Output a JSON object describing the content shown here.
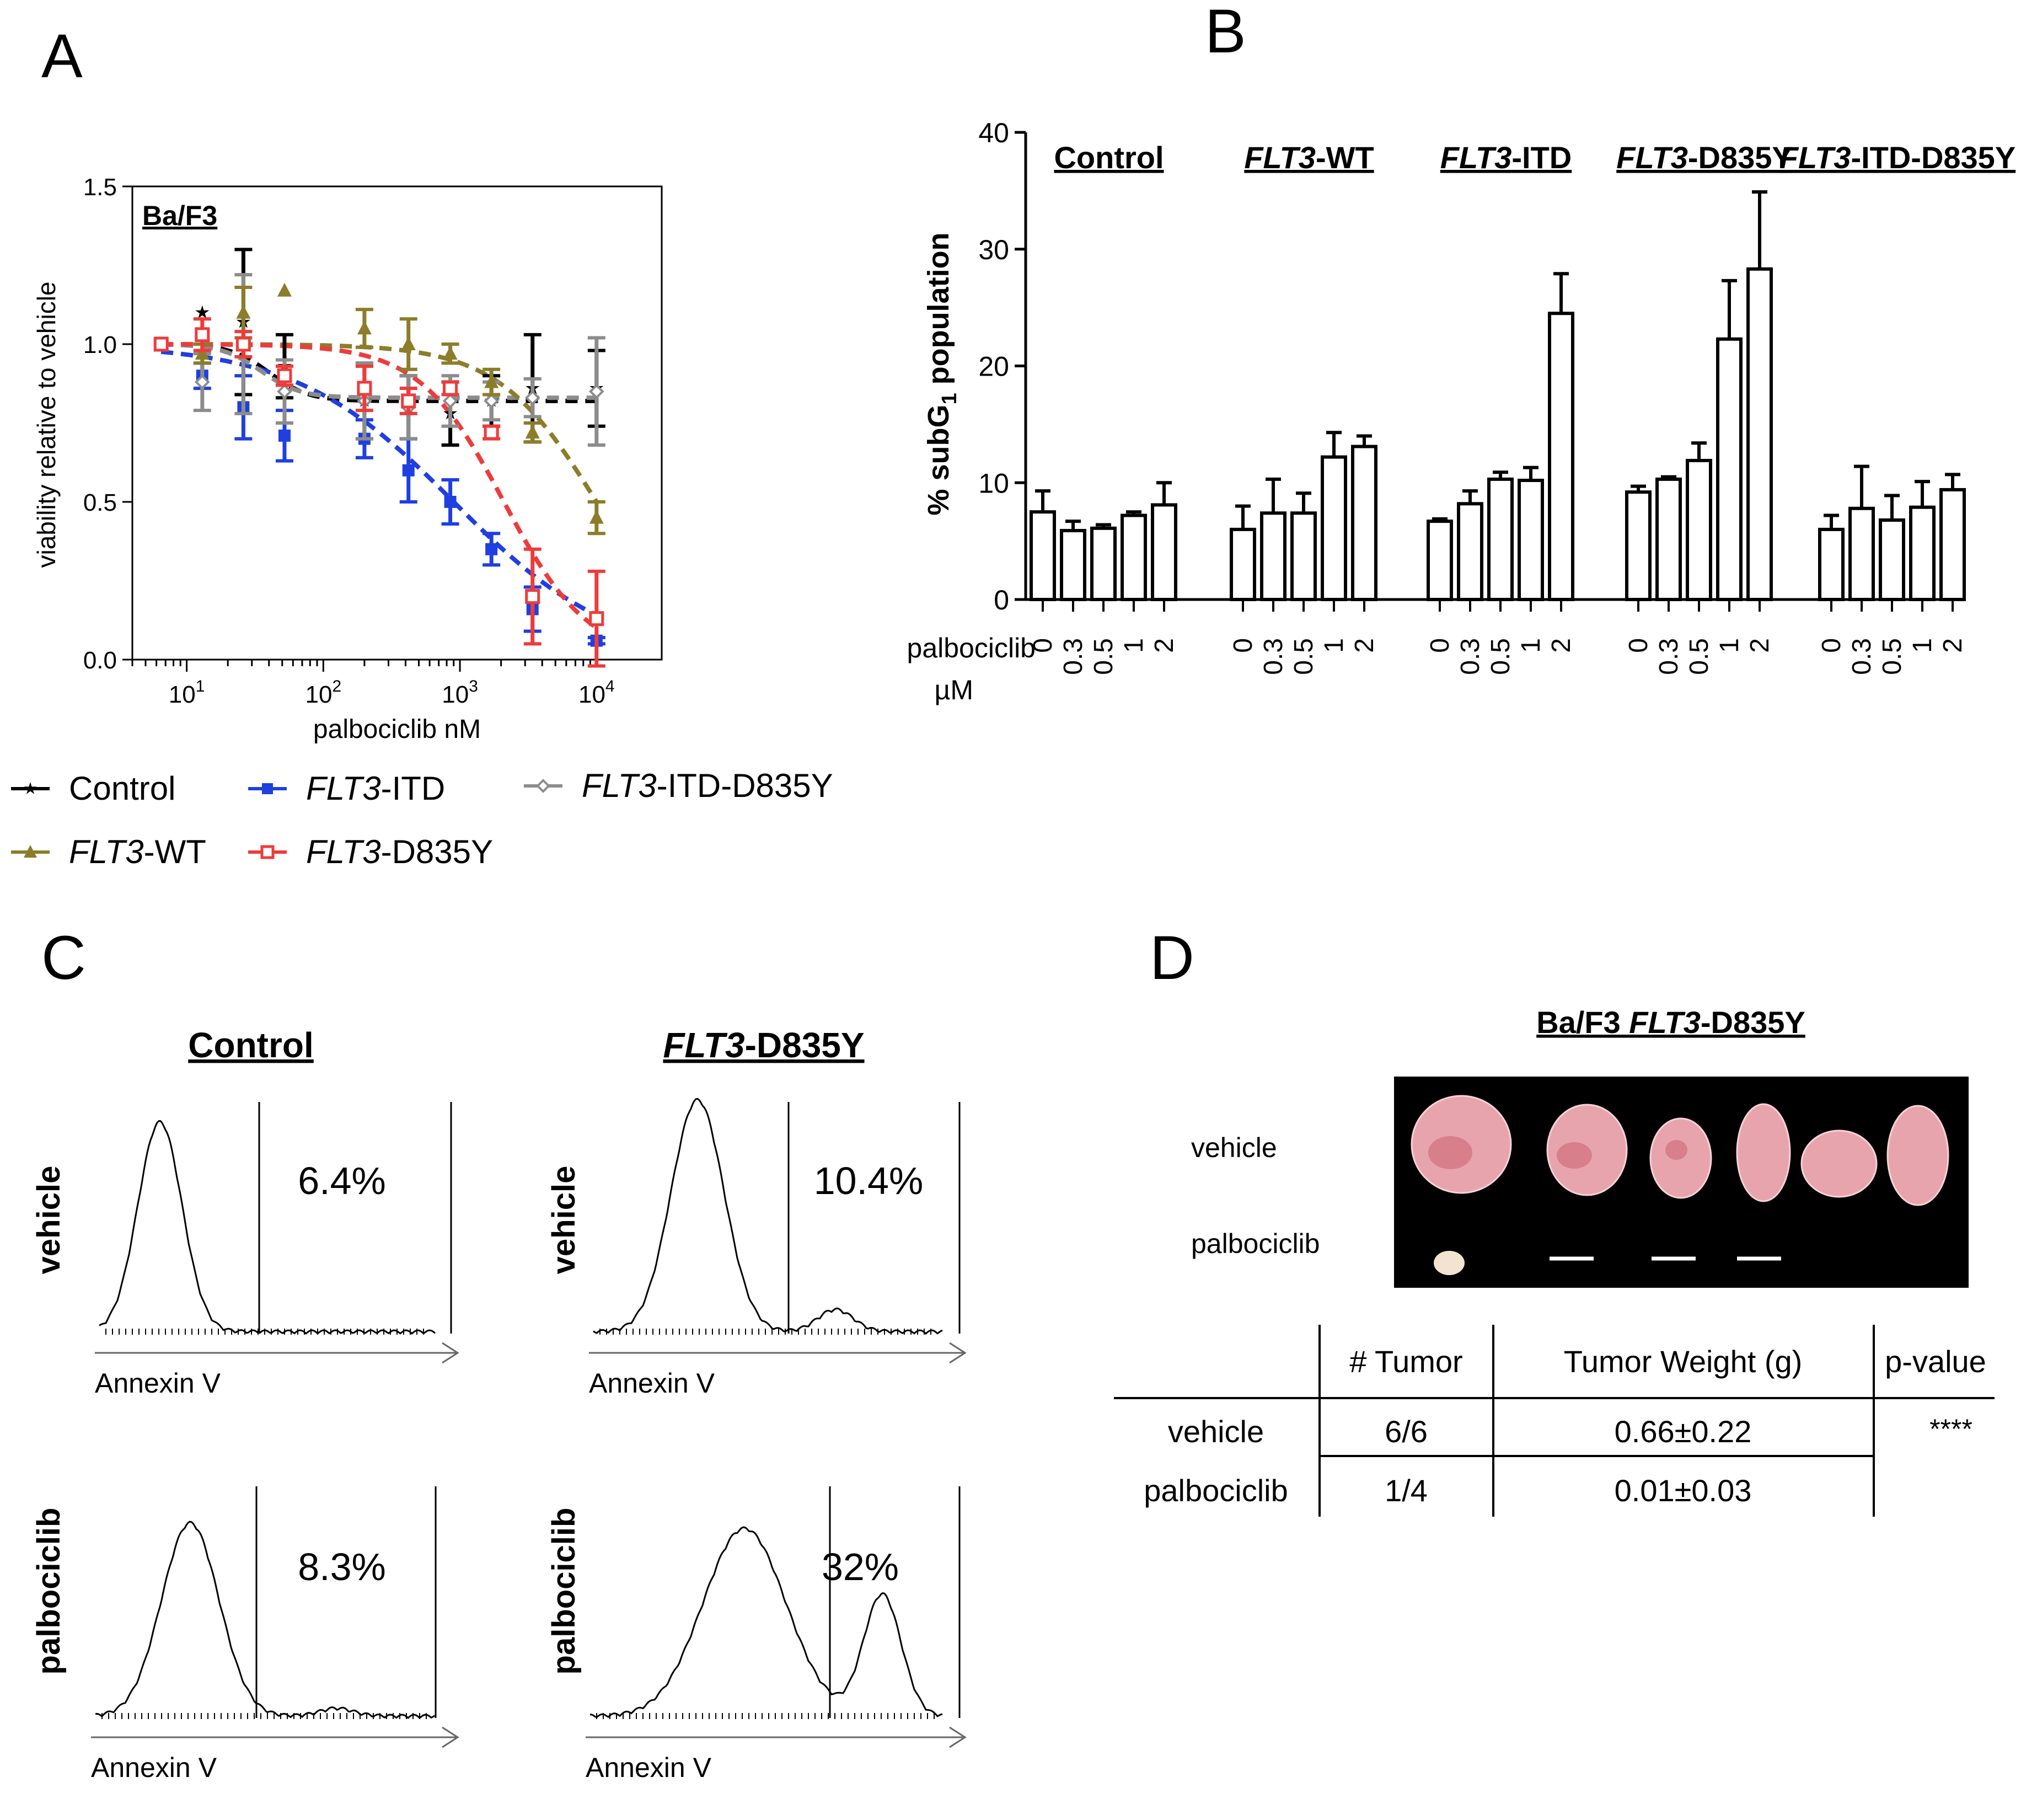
{
  "panels": {
    "A": "A",
    "B": "B",
    "C": "C",
    "D": "D"
  },
  "colors": {
    "control": "#000000",
    "wt": "#8b7d2a",
    "itd": "#1f3fe0",
    "d835y": "#ee3b3b",
    "itd_d835y": "#8c8c8c"
  },
  "chart_data": [
    {
      "id": "A",
      "type": "line",
      "title": "Ba/F3",
      "xlabel": "palbociclib nM",
      "ylabel": "viability relative to vehicle",
      "xscale": "log",
      "xlim": [
        4,
        30000
      ],
      "ylim": [
        0,
        1.5
      ],
      "yticks": [
        "0.0",
        "0.5",
        "1.0",
        "1.5"
      ],
      "xticks": [
        {
          "base": "10",
          "exp": "1",
          "value": 10
        },
        {
          "base": "10",
          "exp": "2",
          "value": 100
        },
        {
          "base": "10",
          "exp": "3",
          "value": 1000
        },
        {
          "base": "10",
          "exp": "4",
          "value": 10000
        }
      ],
      "legend": [
        {
          "key": "control",
          "prefix": "",
          "suffix": "Control",
          "italic": false,
          "marker": "star"
        },
        {
          "key": "itd",
          "prefix": "FLT3",
          "suffix": "-ITD",
          "italic": true,
          "marker": "square"
        },
        {
          "key": "itd_d835y",
          "prefix": "FLT3",
          "suffix": "-ITD-D835Y",
          "italic": true,
          "marker": "diamond"
        },
        {
          "key": "wt",
          "prefix": "FLT3",
          "suffix": "-WT",
          "italic": true,
          "marker": "triangle"
        },
        {
          "key": "d835y",
          "prefix": "FLT3",
          "suffix": "-D835Y",
          "italic": true,
          "marker": "opensquare"
        }
      ],
      "series": [
        {
          "key": "control",
          "name": "Control",
          "marker": "star",
          "fit": "flat",
          "fit_params": {
            "bottom": 0.82,
            "top": 1.0,
            "ic50": 40,
            "hill": 3
          },
          "x": [
            6.5,
            13,
            26,
            52,
            200,
            420,
            850,
            1700,
            3400,
            10000
          ],
          "y": [
            1.0,
            1.1,
            1.07,
            0.93,
            0.82,
            0.8,
            0.78,
            0.82,
            0.86,
            0.86
          ],
          "err": [
            0,
            0,
            0.23,
            0.1,
            0.12,
            0.1,
            0.1,
            0.08,
            0.17,
            0.12
          ]
        },
        {
          "key": "itd",
          "name": "FLT3-ITD",
          "marker": "square",
          "fit": "dose",
          "fit_params": {
            "top": 1.0,
            "bottom": 0,
            "ic50": 900,
            "hill": 0.75
          },
          "x": [
            6.5,
            13,
            26,
            52,
            200,
            420,
            850,
            1700,
            3400,
            10000
          ],
          "y": [
            1.0,
            0.9,
            0.8,
            0.71,
            0.7,
            0.6,
            0.5,
            0.35,
            0.16,
            0.06
          ],
          "err": [
            0,
            0.04,
            0.1,
            0.08,
            0.06,
            0.1,
            0.07,
            0.05,
            0.07,
            0.01
          ]
        },
        {
          "key": "itd_d835y",
          "name": "FLT3-ITD-D835Y",
          "marker": "diamond",
          "fit": "flat",
          "fit_params": {
            "bottom": 0.83,
            "top": 1.0,
            "ic50": 35,
            "hill": 3
          },
          "x": [
            6.5,
            13,
            26,
            52,
            200,
            420,
            850,
            1700,
            3400,
            10000
          ],
          "y": [
            1.0,
            0.88,
            1.0,
            0.85,
            0.82,
            0.8,
            0.82,
            0.82,
            0.83,
            0.85
          ],
          "err": [
            0,
            0.09,
            0.22,
            0.1,
            0.12,
            0.1,
            0.08,
            0.06,
            0.06,
            0.17
          ]
        },
        {
          "key": "wt",
          "name": "FLT3-WT",
          "marker": "triangle",
          "fit": "dose",
          "fit_params": {
            "top": 1.0,
            "bottom": 0,
            "ic50": 10000,
            "hill": 1.2
          },
          "x": [
            6.5,
            13,
            26,
            52,
            200,
            420,
            850,
            1700,
            3400,
            10000
          ],
          "y": [
            1.0,
            0.97,
            1.1,
            1.17,
            1.05,
            1.0,
            0.97,
            0.88,
            0.72,
            0.45
          ],
          "err": [
            0,
            0.03,
            0.08,
            0,
            0.06,
            0.08,
            0.03,
            0.04,
            0.03,
            0.05
          ]
        },
        {
          "key": "d835y",
          "name": "FLT3-D835Y",
          "marker": "opensquare",
          "fit": "dose",
          "fit_params": {
            "top": 1.0,
            "bottom": 0,
            "ic50": 2100,
            "hill": 1.4
          },
          "x": [
            6.5,
            13,
            26,
            52,
            200,
            420,
            850,
            1700,
            3400,
            10000
          ],
          "y": [
            1.0,
            1.03,
            1.0,
            0.9,
            0.86,
            0.82,
            0.86,
            0.72,
            0.2,
            0.13
          ],
          "err": [
            0,
            0.05,
            0.04,
            0.03,
            0.07,
            0.04,
            0.02,
            0.02,
            0.15,
            0.15
          ]
        }
      ]
    },
    {
      "id": "B",
      "type": "bar",
      "ylabel_pre": "% subG",
      "ylabel_sub": "1",
      "ylabel_post": " population",
      "ylim": [
        0,
        40
      ],
      "yticks": [
        "0",
        "10",
        "20",
        "30",
        "40"
      ],
      "xlabel_lines": [
        "palbociclib",
        "µM"
      ],
      "doses": [
        "0",
        "0.3",
        "0.5",
        "1",
        "2"
      ],
      "groups": [
        {
          "prefix": "",
          "suffix": "Control",
          "values": [
            7.5,
            5.9,
            6.1,
            7.2,
            8.1
          ],
          "errors": [
            1.8,
            0.8,
            0.3,
            0.3,
            1.9
          ]
        },
        {
          "prefix": "FLT3",
          "suffix": "-WT",
          "values": [
            6.0,
            7.4,
            7.4,
            12.2,
            13.1
          ],
          "errors": [
            2.0,
            2.9,
            1.7,
            2.1,
            0.9
          ]
        },
        {
          "prefix": "FLT3",
          "suffix": "-ITD",
          "values": [
            6.7,
            8.2,
            10.3,
            10.2,
            24.5
          ],
          "errors": [
            0.2,
            1.1,
            0.6,
            1.1,
            3.4
          ]
        },
        {
          "prefix": "FLT3",
          "suffix": "-D835Y",
          "values": [
            9.2,
            10.3,
            11.9,
            22.3,
            28.3
          ],
          "errors": [
            0.5,
            0.2,
            1.5,
            5.0,
            6.6
          ]
        },
        {
          "prefix": "FLT3",
          "suffix": "-ITD-D835Y",
          "values": [
            6.0,
            7.8,
            6.8,
            7.9,
            9.4
          ],
          "errors": [
            1.2,
            3.6,
            2.1,
            2.2,
            1.3
          ]
        }
      ]
    }
  ],
  "panel_c": {
    "col_headers": [
      {
        "prefix": "",
        "suffix": "Control"
      },
      {
        "prefix": "FLT3",
        "suffix": "-D835Y"
      }
    ],
    "row_labels": [
      "vehicle",
      "palbociclib"
    ],
    "axis_label": "Annexin V",
    "percents": [
      "6.4%",
      "10.4%",
      "8.3%",
      "32%"
    ]
  },
  "panel_d": {
    "title_prefix": "Ba/F3 ",
    "title_italic": "FLT3",
    "title_suffix": "-D835Y",
    "photo_labels": [
      "vehicle",
      "palbociclib"
    ],
    "table": {
      "headers": [
        "# Tumor",
        "Tumor Weight (g)",
        "p-value"
      ],
      "rows": [
        {
          "label": "vehicle",
          "tumors": "6/6",
          "weight": "0.66±0.22"
        },
        {
          "label": "palbociclib",
          "tumors": "1/4",
          "weight": "0.01±0.03"
        }
      ],
      "pvalue": "****"
    }
  }
}
